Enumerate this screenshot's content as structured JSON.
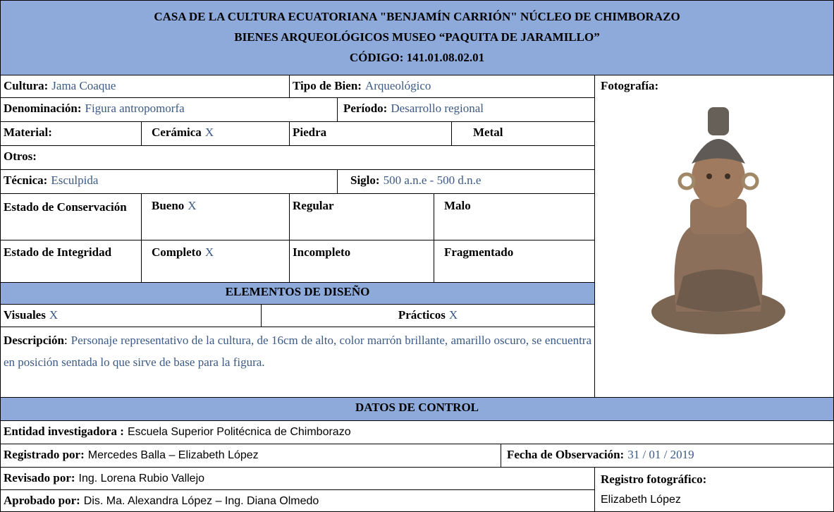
{
  "header": {
    "lines": [
      "CASA DE LA CULTURA ECUATORIANA \"BENJAMÍN CARRIÓN\" NÚCLEO DE CHIMBORAZO",
      "BIENES ARQUEOLÓGICOS MUSEO “PAQUITA DE JARAMILLO”",
      "CÓDIGO: 141.01.08.02.01"
    ]
  },
  "form": {
    "cultura": {
      "label": "Cultura:",
      "value": "Jama Coaque"
    },
    "tipo": {
      "label": "Tipo de Bien:",
      "value": "Arqueológico"
    },
    "fotografia": {
      "label": "Fotografía:"
    },
    "denominacion": {
      "label": "Denominación:",
      "value": "Figura antropomorfa"
    },
    "periodo": {
      "label": "Período:",
      "value": "Desarrollo regional"
    },
    "material": {
      "label": "Material:"
    },
    "ceramica": {
      "label": "Cerámica",
      "value": "X"
    },
    "piedra": {
      "label": "Piedra"
    },
    "metal": {
      "label": "Metal"
    },
    "otros": {
      "label": "Otros:"
    },
    "tecnica": {
      "label": "Técnica:",
      "value": "Esculpida"
    },
    "siglo": {
      "label": "Siglo:",
      "value": "500 a.n.e - 500 d.n.e"
    },
    "conservacion": {
      "label": "Estado de Conservación"
    },
    "bueno": {
      "label": "Bueno",
      "value": "X"
    },
    "regular": {
      "label": "Regular"
    },
    "malo": {
      "label": "Malo"
    },
    "integridad": {
      "label": "Estado de Integridad"
    },
    "completo": {
      "label": "Completo",
      "value": "X"
    },
    "incompleto": {
      "label": "Incompleto"
    },
    "fragmentado": {
      "label": "Fragmentado"
    },
    "elementos": {
      "label": "ELEMENTOS DE DISEÑO"
    },
    "visuales": {
      "label": "Visuales",
      "value": "X"
    },
    "practicos": {
      "label": "Prácticos",
      "value": "X"
    },
    "descripcion": {
      "label": "Descripción",
      "separator": ":",
      "value": "Personaje representativo de la cultura, de 16cm de alto, color marrón brillante, amarillo oscuro, se encuentra en posición sentada lo que sirve de base para la figura."
    },
    "datos": {
      "label": "DATOS DE CONTROL"
    },
    "entidad": {
      "label": "Entidad investigadora :",
      "value": "Escuela Superior Politécnica de Chimborazo"
    },
    "registrado": {
      "label": "Registrado por:",
      "value": "Mercedes Balla – Elizabeth López"
    },
    "fecha": {
      "label": "Fecha de Observación:",
      "value": "31 / 01 / 2019"
    },
    "revisado": {
      "label": "Revisado por:",
      "value": "Ing. Lorena Rubio Vallejo"
    },
    "registro": {
      "label": "Registro fotográfico:",
      "value": "Elizabeth López"
    },
    "aprobado": {
      "label": "Aprobado por:",
      "value": "Dis. Ma. Alexandra López – Ing. Diana Olmedo"
    }
  }
}
